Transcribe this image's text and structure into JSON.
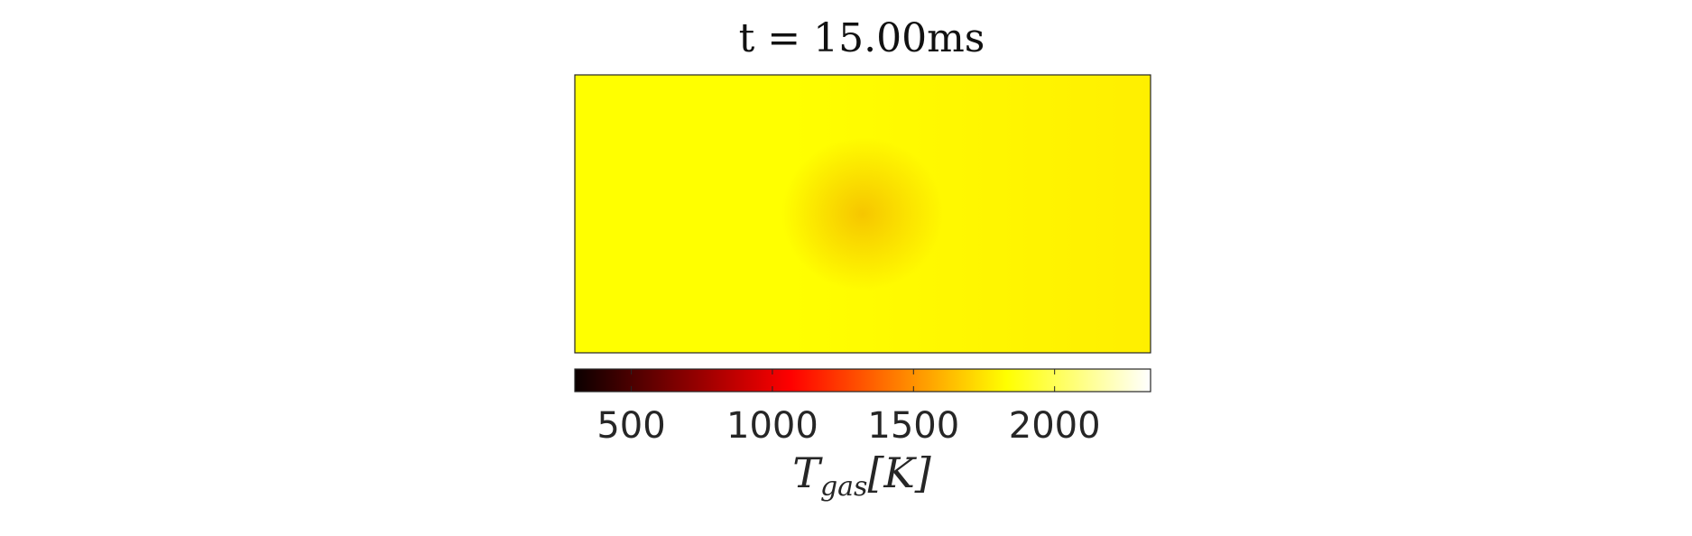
{
  "chart_data": {
    "type": "heatmap",
    "title": "t = 15.00ms",
    "colorbar": {
      "colormap": "hot",
      "range": [
        300,
        2340
      ],
      "ticks": [
        500,
        1000,
        1500,
        2000
      ],
      "tick_labels": [
        "500",
        "1000",
        "1500",
        "2000"
      ],
      "label_main": "T",
      "label_sub": "gas",
      "label_unit": "[K]",
      "location": "bottom"
    },
    "field": {
      "background_value": 2000,
      "right_side_value": 1960,
      "hotspot_value": 1880,
      "hotspot_location": "center"
    },
    "colors": {
      "field_primary": "#ffff00",
      "field_secondary": "#ffef00",
      "hotspot": "#f6c600"
    }
  }
}
